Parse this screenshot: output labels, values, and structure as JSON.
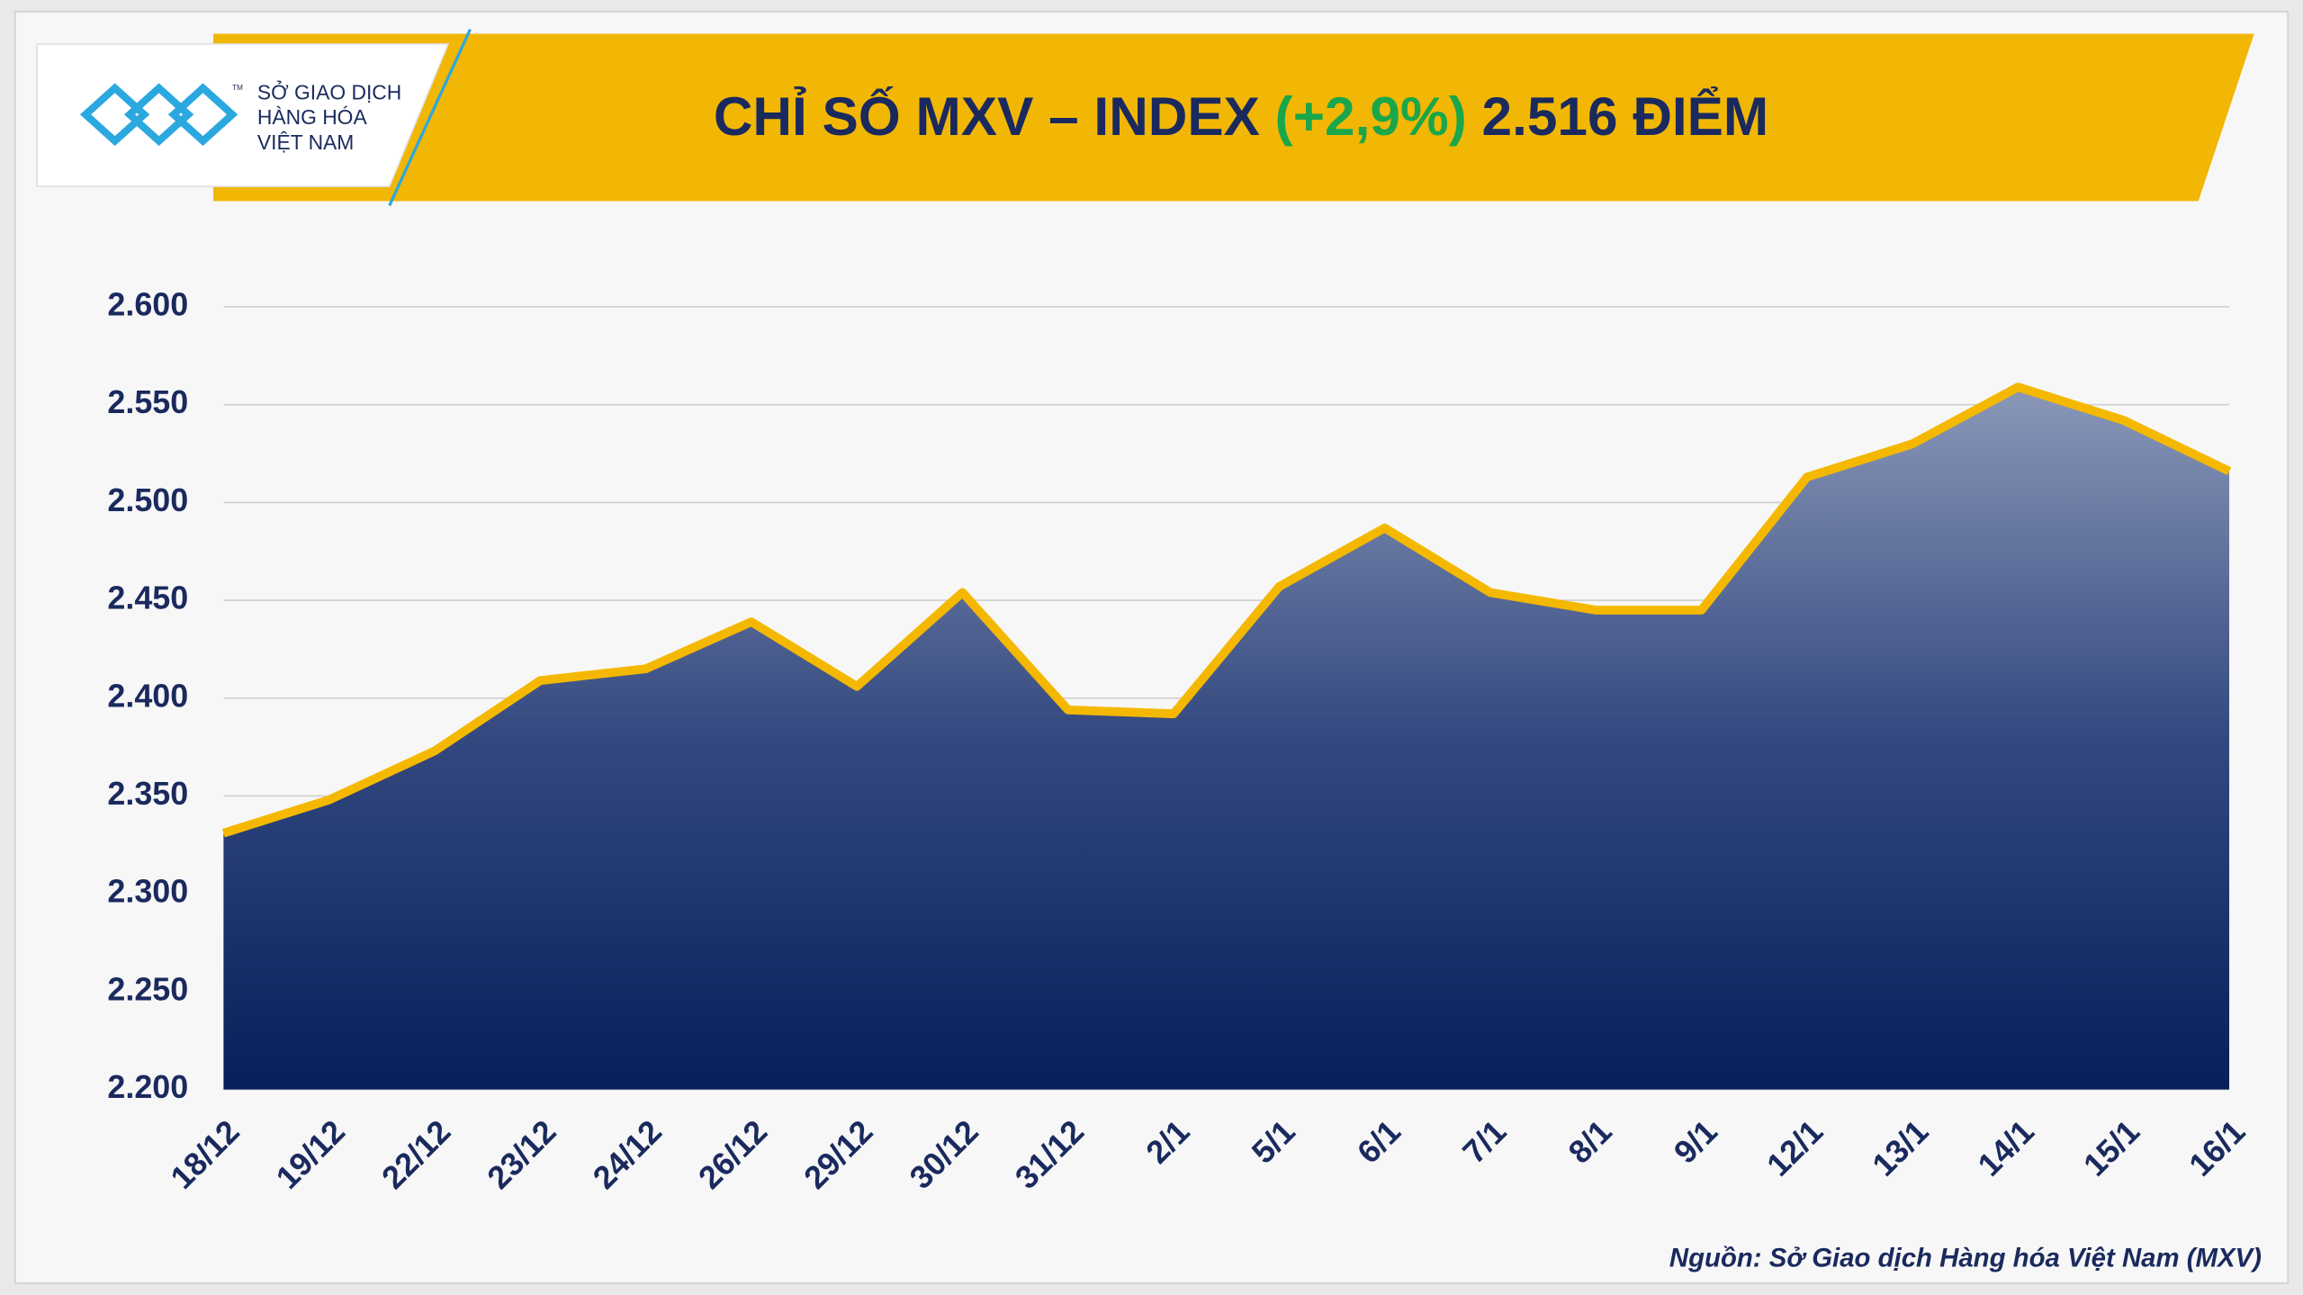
{
  "logo": {
    "line1": "SỞ GIAO DỊCH",
    "line2": "HÀNG HÓA",
    "line3": "VIỆT NAM",
    "mark": "TM"
  },
  "header": {
    "title": "CHỈ SỐ MXV – INDEX",
    "change": "(+2,9%)",
    "value": "2.516 ĐIỂM"
  },
  "source": "Nguồn: Sở Giao dịch Hàng hóa Việt Nam (MXV)",
  "chart_data": {
    "type": "area",
    "categories": [
      "18/12",
      "19/12",
      "22/12",
      "23/12",
      "24/12",
      "26/12",
      "29/12",
      "30/12",
      "31/12",
      "2/1",
      "5/1",
      "6/1",
      "7/1",
      "8/1",
      "9/1",
      "12/1",
      "13/1",
      "14/1",
      "15/1",
      "16/1"
    ],
    "values": [
      2331,
      2348,
      2373,
      2409,
      2415,
      2439,
      2406,
      2454,
      2394,
      2392,
      2457,
      2487,
      2454,
      2445,
      2445,
      2513,
      2530,
      2559,
      2542,
      2516
    ],
    "color": "#f5b800",
    "ylim": [
      2200,
      2600
    ],
    "yticks": [
      {
        "value": 2200,
        "label": "2.200"
      },
      {
        "value": 2250,
        "label": "2.250"
      },
      {
        "value": 2300,
        "label": "2.300"
      },
      {
        "value": 2350,
        "label": "2.350"
      },
      {
        "value": 2400,
        "label": "2.400"
      },
      {
        "value": 2450,
        "label": "2.450"
      },
      {
        "value": 2500,
        "label": "2.500"
      },
      {
        "value": 2550,
        "label": "2.550"
      },
      {
        "value": 2600,
        "label": "2.600"
      }
    ],
    "grid": true
  }
}
